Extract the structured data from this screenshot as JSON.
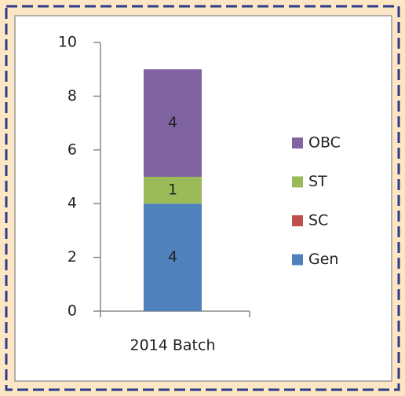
{
  "chart_data": {
    "type": "stacked_bar",
    "categories": [
      "2014 Batch"
    ],
    "series": [
      {
        "name": "Gen",
        "color": "#4f81bd",
        "values": [
          4
        ]
      },
      {
        "name": "SC",
        "color": "#c0504d",
        "values": [
          0
        ]
      },
      {
        "name": "ST",
        "color": "#9bbb59",
        "values": [
          1
        ]
      },
      {
        "name": "OBC",
        "color": "#8064a2",
        "values": [
          4
        ]
      }
    ],
    "ylim": [
      0,
      10
    ],
    "yticks": [
      0,
      2,
      4,
      6,
      8,
      10
    ],
    "grid": false,
    "legend": "right"
  }
}
